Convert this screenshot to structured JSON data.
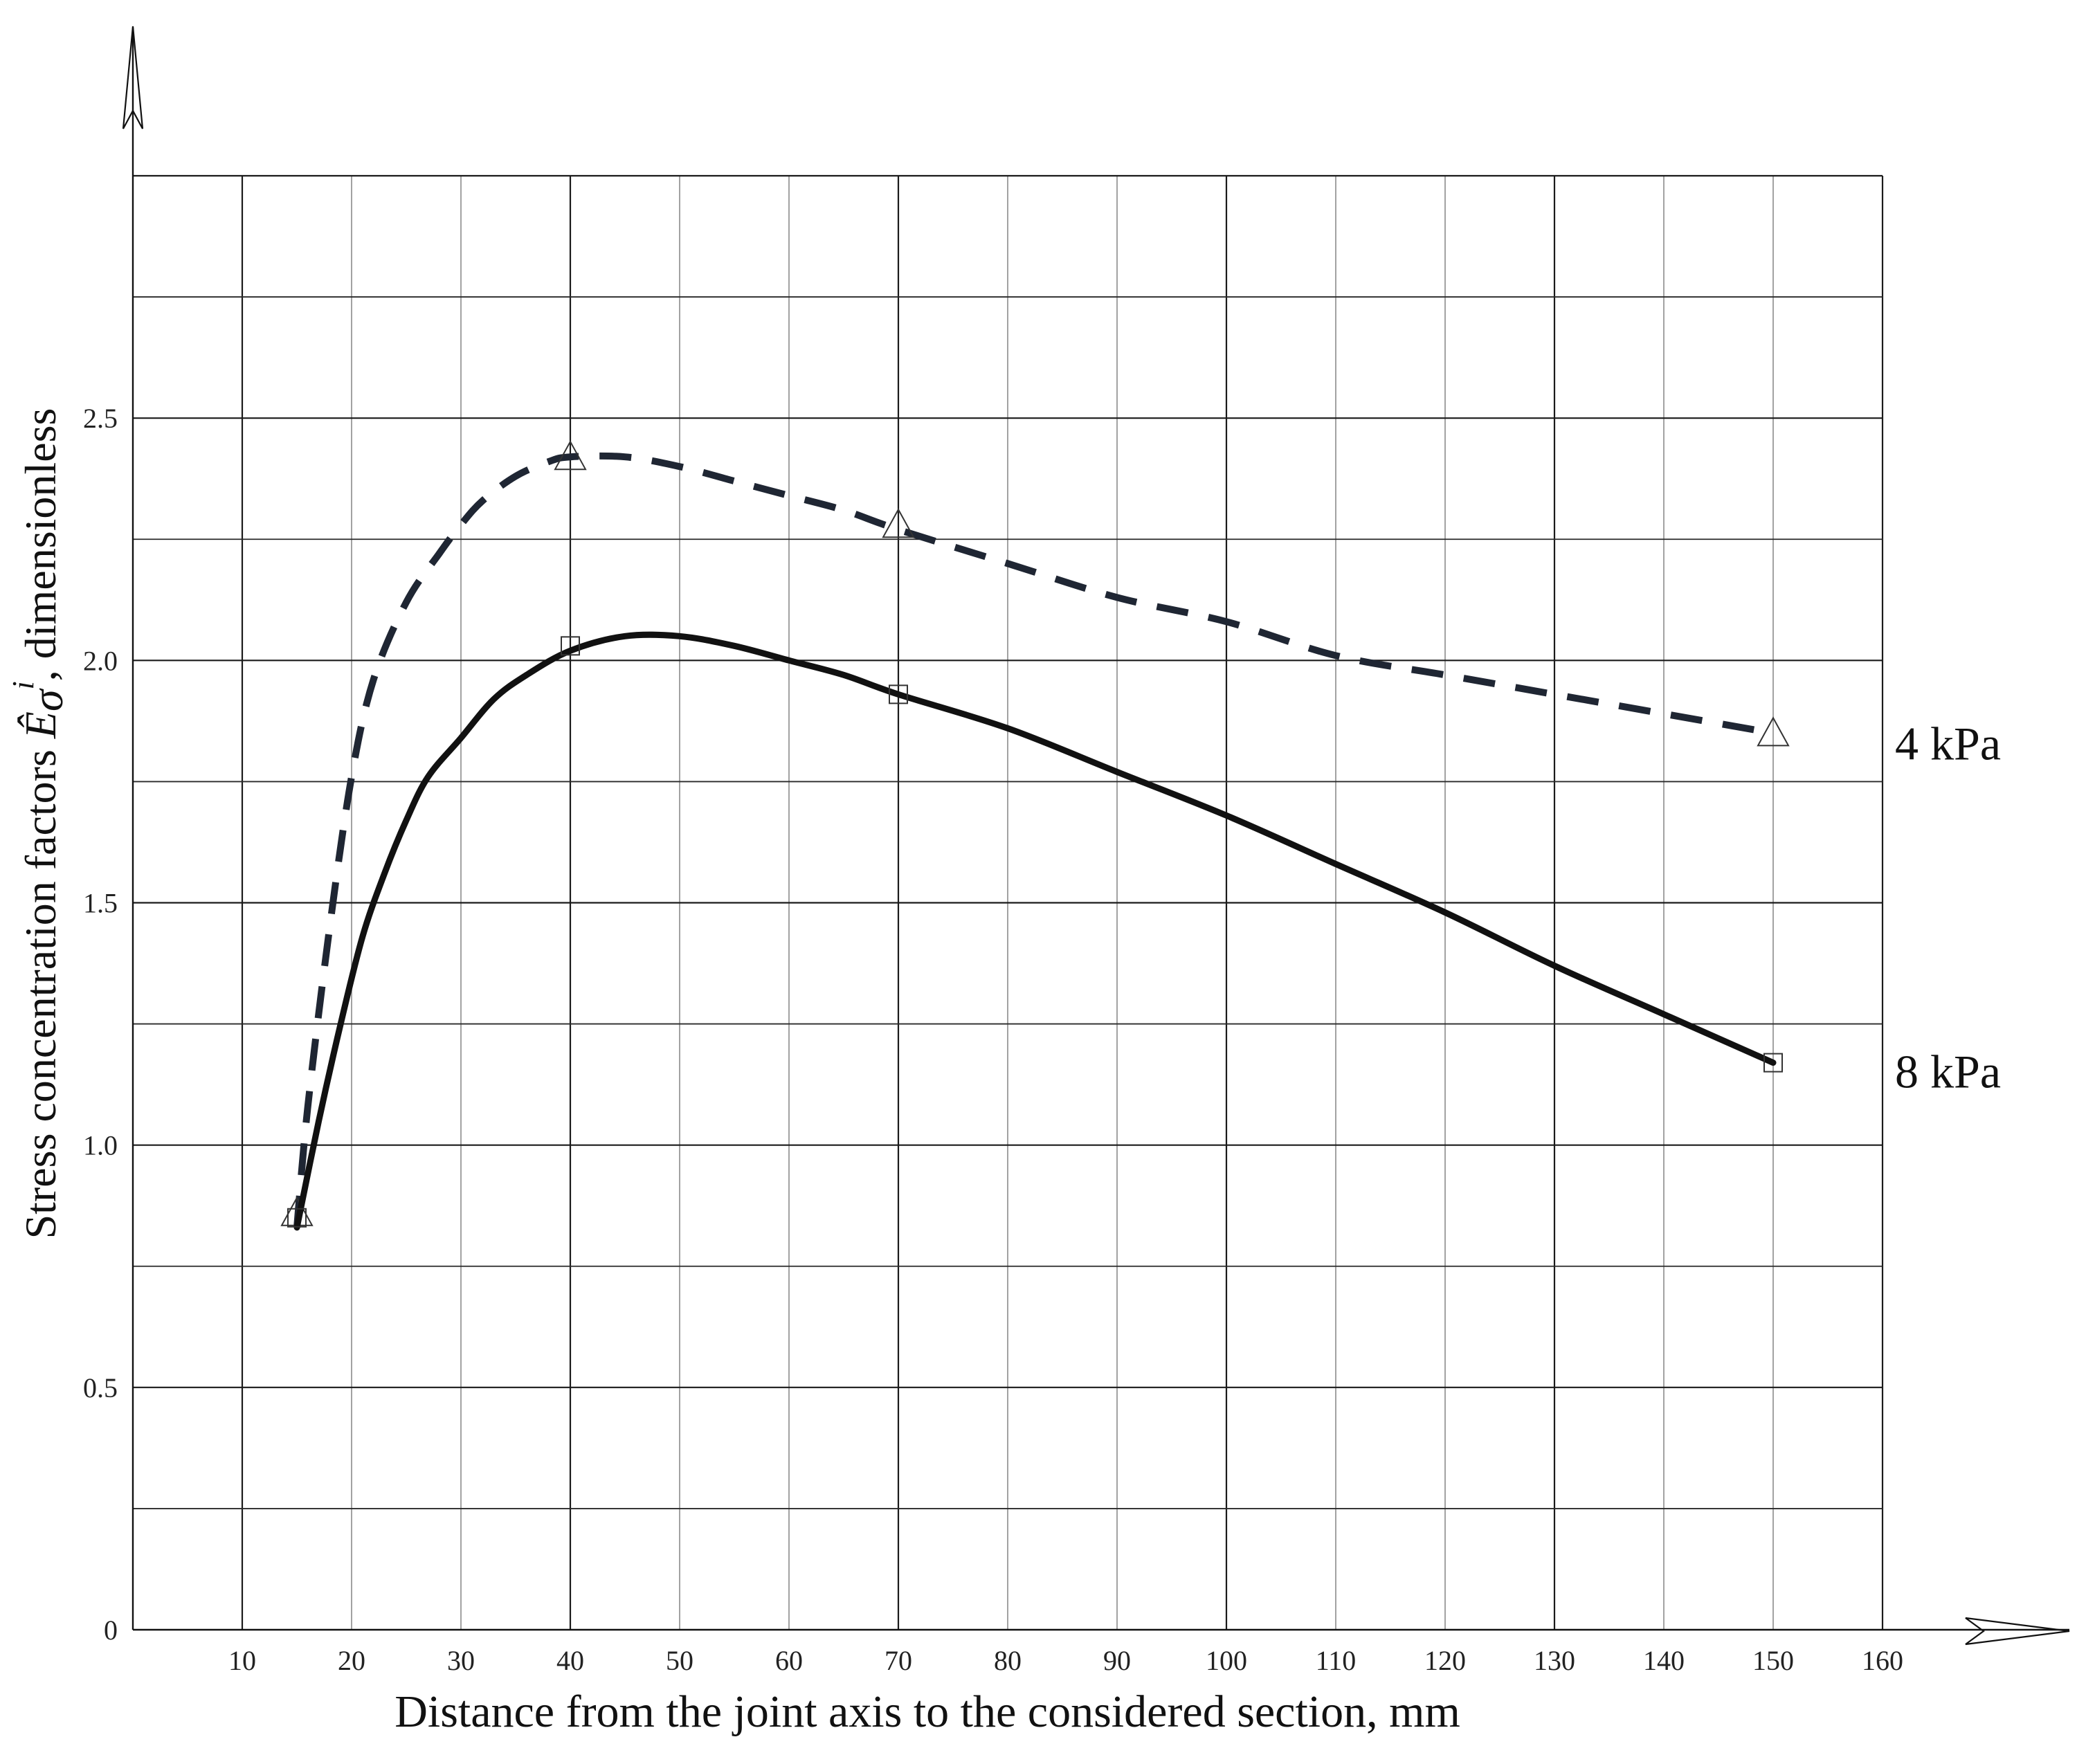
{
  "chart_data": {
    "type": "line",
    "xlabel": "Distance from the joint axis to the considered section, mm",
    "ylabel_prefix": "Stress concentration factors",
    "ylabel_symbol_main": "Ê",
    "ylabel_symbol_sub": "σ",
    "ylabel_symbol_sup": "i",
    "ylabel_suffix": ", dimensionless",
    "xlim": [
      0,
      160
    ],
    "ylim": [
      0,
      3.0
    ],
    "x_ticks": [
      10,
      20,
      30,
      40,
      50,
      60,
      70,
      80,
      90,
      100,
      110,
      120,
      130,
      140,
      150,
      160
    ],
    "y_ticks": [
      "0",
      "0.5",
      "1.0",
      "1.5",
      "2.0",
      "2.5"
    ],
    "y_tick_values": [
      0,
      0.5,
      1.0,
      1.5,
      2.0,
      2.5
    ],
    "grid": true,
    "series": [
      {
        "name": "4 kPa",
        "style": "dashed",
        "marker": "triangle",
        "color": "#1f2633",
        "points": [
          {
            "x": 15,
            "y": 0.86
          },
          {
            "x": 40,
            "y": 2.42
          },
          {
            "x": 70,
            "y": 2.28
          },
          {
            "x": 150,
            "y": 1.85
          }
        ],
        "curve": [
          [
            15,
            0.83
          ],
          [
            16,
            1.08
          ],
          [
            18,
            1.45
          ],
          [
            20,
            1.76
          ],
          [
            22,
            1.96
          ],
          [
            25,
            2.12
          ],
          [
            28,
            2.22
          ],
          [
            30,
            2.28
          ],
          [
            32,
            2.33
          ],
          [
            35,
            2.38
          ],
          [
            38,
            2.41
          ],
          [
            40,
            2.42
          ],
          [
            45,
            2.42
          ],
          [
            50,
            2.4
          ],
          [
            55,
            2.37
          ],
          [
            60,
            2.34
          ],
          [
            65,
            2.31
          ],
          [
            70,
            2.27
          ],
          [
            80,
            2.2
          ],
          [
            90,
            2.13
          ],
          [
            100,
            2.08
          ],
          [
            110,
            2.01
          ],
          [
            120,
            1.97
          ],
          [
            130,
            1.93
          ],
          [
            140,
            1.89
          ],
          [
            150,
            1.85
          ]
        ]
      },
      {
        "name": "8 kPa",
        "style": "solid",
        "marker": "square",
        "color": "#111111",
        "points": [
          {
            "x": 15,
            "y": 0.85
          },
          {
            "x": 40,
            "y": 2.03
          },
          {
            "x": 70,
            "y": 1.93
          },
          {
            "x": 150,
            "y": 1.17
          }
        ],
        "curve": [
          [
            15,
            0.83
          ],
          [
            17,
            1.05
          ],
          [
            19,
            1.25
          ],
          [
            21,
            1.43
          ],
          [
            23,
            1.56
          ],
          [
            25,
            1.67
          ],
          [
            27,
            1.76
          ],
          [
            30,
            1.84
          ],
          [
            33,
            1.92
          ],
          [
            36,
            1.97
          ],
          [
            40,
            2.02
          ],
          [
            45,
            2.05
          ],
          [
            50,
            2.05
          ],
          [
            55,
            2.03
          ],
          [
            60,
            2.0
          ],
          [
            65,
            1.97
          ],
          [
            70,
            1.93
          ],
          [
            80,
            1.86
          ],
          [
            90,
            1.77
          ],
          [
            100,
            1.68
          ],
          [
            110,
            1.58
          ],
          [
            120,
            1.48
          ],
          [
            130,
            1.37
          ],
          [
            140,
            1.27
          ],
          [
            150,
            1.17
          ]
        ]
      }
    ]
  }
}
